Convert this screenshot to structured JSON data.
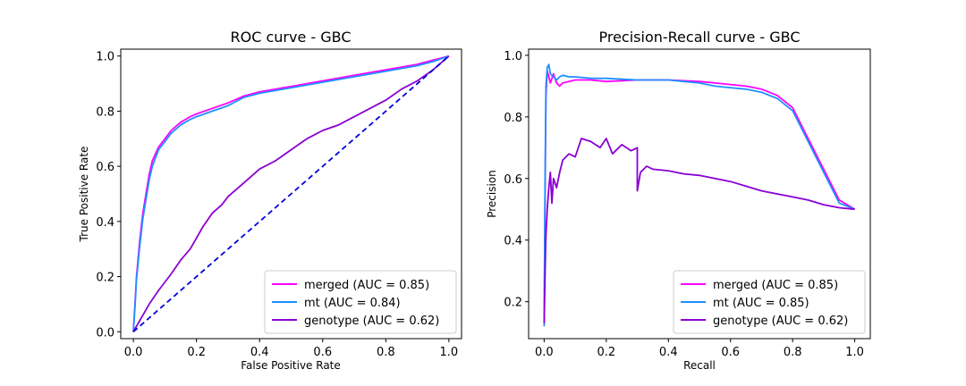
{
  "chart_data": [
    {
      "type": "line",
      "title": "ROC curve - GBC",
      "xlabel": "False Positive Rate",
      "ylabel": "True Positive Rate",
      "xlim": [
        -0.04,
        1.04
      ],
      "ylim": [
        -0.025,
        1.025
      ],
      "xticks": [
        0.0,
        0.2,
        0.4,
        0.6,
        0.8,
        1.0
      ],
      "yticks": [
        0.0,
        0.2,
        0.4,
        0.6,
        0.8,
        1.0
      ],
      "xtick_labels": [
        "0.0",
        "0.2",
        "0.4",
        "0.6",
        "0.8",
        "1.0"
      ],
      "ytick_labels": [
        "0.0",
        "0.2",
        "0.4",
        "0.6",
        "0.8",
        "1.0"
      ],
      "legend_position": "bottom-right",
      "series": [
        {
          "name": "merged (AUC = 0.85)",
          "color": "#ff00ff",
          "style": "solid",
          "x": [
            0.0,
            0.005,
            0.01,
            0.02,
            0.03,
            0.04,
            0.05,
            0.06,
            0.08,
            0.1,
            0.12,
            0.15,
            0.18,
            0.2,
            0.25,
            0.3,
            0.35,
            0.4,
            0.5,
            0.6,
            0.7,
            0.8,
            0.9,
            0.95,
            1.0
          ],
          "y": [
            0.0,
            0.1,
            0.2,
            0.33,
            0.43,
            0.5,
            0.57,
            0.62,
            0.67,
            0.7,
            0.73,
            0.76,
            0.78,
            0.79,
            0.81,
            0.83,
            0.855,
            0.87,
            0.89,
            0.91,
            0.93,
            0.95,
            0.97,
            0.985,
            1.0
          ]
        },
        {
          "name": "mt (AUC = 0.84)",
          "color": "#1e90ff",
          "style": "solid",
          "x": [
            0.0,
            0.005,
            0.01,
            0.02,
            0.03,
            0.04,
            0.05,
            0.06,
            0.08,
            0.1,
            0.12,
            0.15,
            0.18,
            0.2,
            0.25,
            0.3,
            0.35,
            0.4,
            0.5,
            0.6,
            0.7,
            0.8,
            0.9,
            0.95,
            1.0
          ],
          "y": [
            0.0,
            0.09,
            0.19,
            0.31,
            0.41,
            0.48,
            0.55,
            0.6,
            0.66,
            0.69,
            0.72,
            0.75,
            0.77,
            0.78,
            0.8,
            0.82,
            0.85,
            0.865,
            0.885,
            0.905,
            0.925,
            0.945,
            0.965,
            0.98,
            1.0
          ]
        },
        {
          "name": "genotype (AUC = 0.62)",
          "color": "#8a00d4",
          "style": "solid",
          "x": [
            0.0,
            0.02,
            0.05,
            0.08,
            0.12,
            0.15,
            0.18,
            0.2,
            0.22,
            0.25,
            0.28,
            0.3,
            0.35,
            0.4,
            0.45,
            0.5,
            0.55,
            0.6,
            0.65,
            0.7,
            0.75,
            0.8,
            0.85,
            0.9,
            0.95,
            1.0
          ],
          "y": [
            0.0,
            0.04,
            0.1,
            0.15,
            0.21,
            0.26,
            0.3,
            0.34,
            0.38,
            0.43,
            0.46,
            0.49,
            0.54,
            0.59,
            0.62,
            0.66,
            0.7,
            0.73,
            0.75,
            0.78,
            0.81,
            0.84,
            0.88,
            0.91,
            0.95,
            1.0
          ]
        },
        {
          "name": "",
          "color": "#0000dd",
          "style": "dashed",
          "x": [
            0.0,
            1.0
          ],
          "y": [
            0.0,
            1.0
          ]
        }
      ]
    },
    {
      "type": "line",
      "title": "Precision-Recall curve - GBC",
      "xlabel": "Recall",
      "ylabel": "Precision",
      "xlim": [
        -0.05,
        1.05
      ],
      "ylim": [
        0.08,
        1.02
      ],
      "xticks": [
        0.0,
        0.2,
        0.4,
        0.6,
        0.8,
        1.0
      ],
      "yticks": [
        0.2,
        0.4,
        0.6,
        0.8,
        1.0
      ],
      "xtick_labels": [
        "0.0",
        "0.2",
        "0.4",
        "0.6",
        "0.8",
        "1.0"
      ],
      "ytick_labels": [
        "0.2",
        "0.4",
        "0.6",
        "0.8",
        "1.0"
      ],
      "legend_position": "bottom-right",
      "series": [
        {
          "name": "merged (AUC = 0.85)",
          "color": "#ff00ff",
          "style": "solid",
          "x": [
            0.0,
            0.003,
            0.006,
            0.01,
            0.015,
            0.02,
            0.03,
            0.04,
            0.05,
            0.06,
            0.08,
            0.1,
            0.15,
            0.2,
            0.3,
            0.4,
            0.5,
            0.55,
            0.6,
            0.65,
            0.7,
            0.75,
            0.8,
            0.85,
            0.9,
            0.95,
            1.0
          ],
          "y": [
            0.14,
            0.55,
            0.87,
            0.95,
            0.93,
            0.91,
            0.94,
            0.91,
            0.9,
            0.91,
            0.915,
            0.92,
            0.92,
            0.915,
            0.92,
            0.92,
            0.915,
            0.91,
            0.905,
            0.9,
            0.89,
            0.87,
            0.83,
            0.73,
            0.63,
            0.53,
            0.5
          ]
        },
        {
          "name": "mt (AUC = 0.85)",
          "color": "#1e90ff",
          "style": "solid",
          "x": [
            0.0,
            0.003,
            0.006,
            0.01,
            0.015,
            0.02,
            0.03,
            0.04,
            0.05,
            0.06,
            0.08,
            0.1,
            0.15,
            0.2,
            0.3,
            0.4,
            0.5,
            0.55,
            0.6,
            0.65,
            0.7,
            0.75,
            0.8,
            0.85,
            0.9,
            0.95,
            1.0
          ],
          "y": [
            0.12,
            0.6,
            0.9,
            0.96,
            0.97,
            0.94,
            0.93,
            0.92,
            0.93,
            0.935,
            0.93,
            0.93,
            0.925,
            0.925,
            0.92,
            0.92,
            0.91,
            0.9,
            0.895,
            0.89,
            0.88,
            0.86,
            0.82,
            0.72,
            0.62,
            0.52,
            0.5
          ]
        },
        {
          "name": "genotype (AUC = 0.62)",
          "color": "#8a00d4",
          "style": "solid",
          "x": [
            0.0,
            0.005,
            0.01,
            0.015,
            0.02,
            0.025,
            0.03,
            0.04,
            0.05,
            0.06,
            0.08,
            0.1,
            0.12,
            0.15,
            0.18,
            0.2,
            0.22,
            0.25,
            0.28,
            0.3,
            0.3,
            0.31,
            0.33,
            0.35,
            0.4,
            0.45,
            0.5,
            0.55,
            0.6,
            0.65,
            0.7,
            0.75,
            0.8,
            0.85,
            0.9,
            0.95,
            1.0
          ],
          "y": [
            0.13,
            0.4,
            0.5,
            0.57,
            0.62,
            0.52,
            0.6,
            0.57,
            0.62,
            0.66,
            0.68,
            0.67,
            0.73,
            0.72,
            0.7,
            0.73,
            0.68,
            0.71,
            0.69,
            0.7,
            0.56,
            0.62,
            0.64,
            0.63,
            0.625,
            0.615,
            0.61,
            0.6,
            0.59,
            0.575,
            0.56,
            0.55,
            0.54,
            0.53,
            0.515,
            0.505,
            0.5
          ]
        }
      ]
    }
  ]
}
